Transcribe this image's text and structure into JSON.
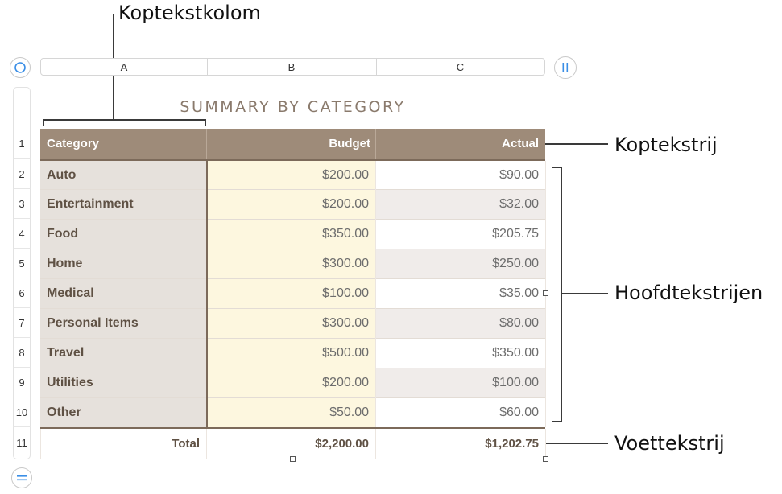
{
  "callouts": {
    "header_column": "Koptekstkolom",
    "header_row": "Koptekstrij",
    "body_rows": "Hoofdtekstrijen",
    "footer_row": "Voettekstrij"
  },
  "column_letters": [
    "A",
    "B",
    "C"
  ],
  "row_numbers": [
    "1",
    "2",
    "3",
    "4",
    "5",
    "6",
    "7",
    "8",
    "9",
    "10",
    "11"
  ],
  "table": {
    "title": "SUMMARY BY CATEGORY",
    "headers": {
      "category": "Category",
      "budget": "Budget",
      "actual": "Actual"
    },
    "rows": [
      {
        "category": "Auto",
        "budget": "$200.00",
        "actual": "$90.00"
      },
      {
        "category": "Entertainment",
        "budget": "$200.00",
        "actual": "$32.00"
      },
      {
        "category": "Food",
        "budget": "$350.00",
        "actual": "$205.75"
      },
      {
        "category": "Home",
        "budget": "$300.00",
        "actual": "$250.00"
      },
      {
        "category": "Medical",
        "budget": "$100.00",
        "actual": "$35.00"
      },
      {
        "category": "Personal Items",
        "budget": "$300.00",
        "actual": "$80.00"
      },
      {
        "category": "Travel",
        "budget": "$500.00",
        "actual": "$350.00"
      },
      {
        "category": "Utilities",
        "budget": "$200.00",
        "actual": "$100.00"
      },
      {
        "category": "Other",
        "budget": "$50.00",
        "actual": "$60.00"
      }
    ],
    "footer": {
      "label": "Total",
      "budget": "$2,200.00",
      "actual": "$1,202.75"
    }
  },
  "colors": {
    "header_bg": "#9e8b79",
    "category_bg": "#e6e1dc",
    "budget_bg": "#fdf7df",
    "alt_row_bg": "#f0ecea",
    "title_color": "#8a7a6c",
    "accent_blue": "#3a8ee6"
  },
  "icons": {
    "select_table": "circle-select-icon",
    "column_handle": "pause-bars-icon",
    "row_handle": "equals-bars-icon"
  }
}
